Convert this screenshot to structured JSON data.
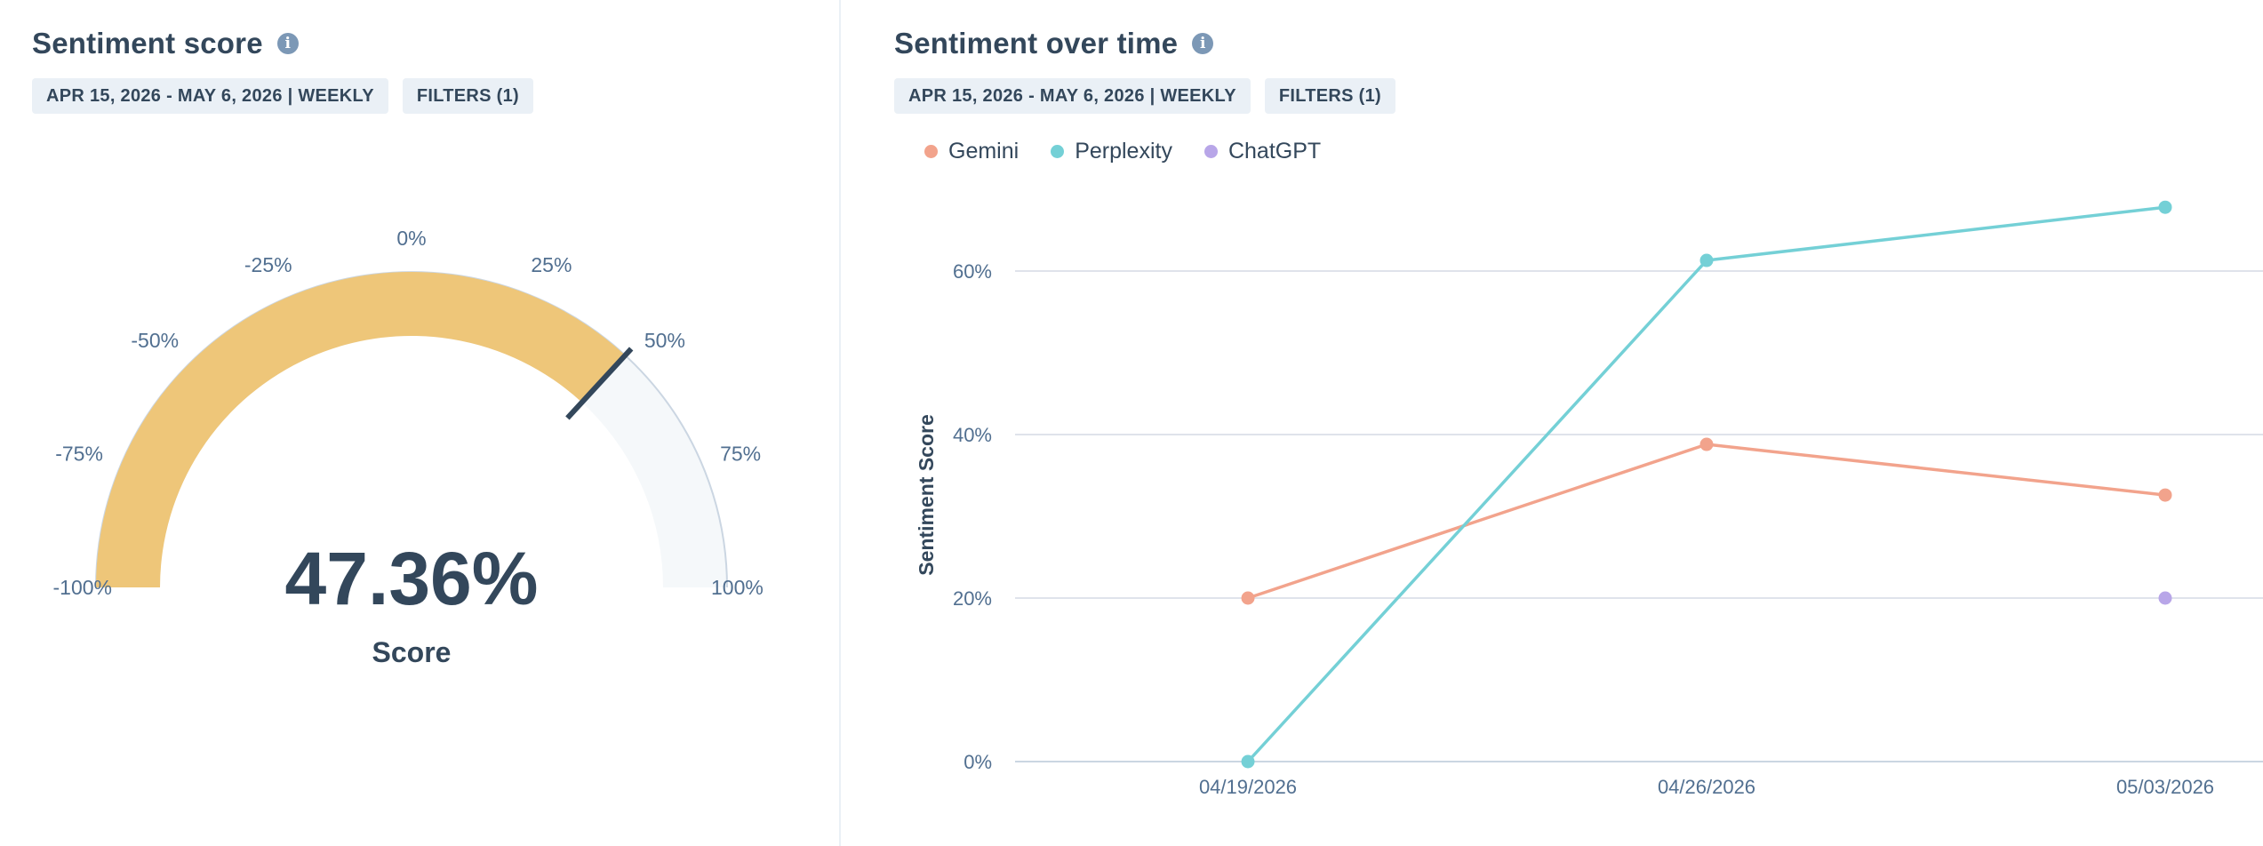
{
  "sentiment_score_card": {
    "title": "Sentiment score",
    "chips": {
      "date_range": "APR 15, 2026 - MAY 6, 2026 | WEEKLY",
      "filters": "FILTERS (1)"
    },
    "score_text": "47.36%",
    "score_label": "Score"
  },
  "sentiment_over_time_card": {
    "title": "Sentiment over time",
    "chips": {
      "date_range": "APR 15, 2026 - MAY 6, 2026 | WEEKLY",
      "filters": "FILTERS (1)"
    }
  },
  "colors": {
    "gauge_fill": "#eec679",
    "gauge_track": "#f5f8fa",
    "gauge_outline": "#cbd6e2",
    "needle": "#33475b",
    "gemini": "#f2a38c",
    "perplexity": "#74d0d6",
    "chatgpt": "#b8a6e8",
    "grid": "#dfe3eb"
  },
  "chart_data": [
    {
      "type": "gauge",
      "value": 47.36,
      "range": [
        -100,
        100
      ],
      "tick_values": [
        -100,
        -75,
        -50,
        -25,
        0,
        25,
        50,
        75,
        100
      ],
      "tick_labels": [
        "-100%",
        "-75%",
        "-50%",
        "-25%",
        "0%",
        "25%",
        "50%",
        "75%",
        "100%"
      ],
      "label": "Score"
    },
    {
      "type": "line",
      "title": "Sentiment over time",
      "categories": [
        "04/19/2026",
        "04/26/2026",
        "05/03/2026"
      ],
      "ylabel": "Sentiment Score",
      "xlabel": "",
      "ylim": [
        0,
        70
      ],
      "yticks": [
        0,
        20,
        40,
        60
      ],
      "ytick_labels": [
        "0%",
        "20%",
        "40%",
        "60%"
      ],
      "grid": true,
      "legend": "top-left",
      "series": [
        {
          "name": "Gemini",
          "values": [
            20,
            38.8,
            32.6
          ]
        },
        {
          "name": "Perplexity",
          "values": [
            0,
            61.3,
            67.8
          ]
        },
        {
          "name": "ChatGPT",
          "values": [
            null,
            null,
            20
          ]
        }
      ]
    }
  ]
}
